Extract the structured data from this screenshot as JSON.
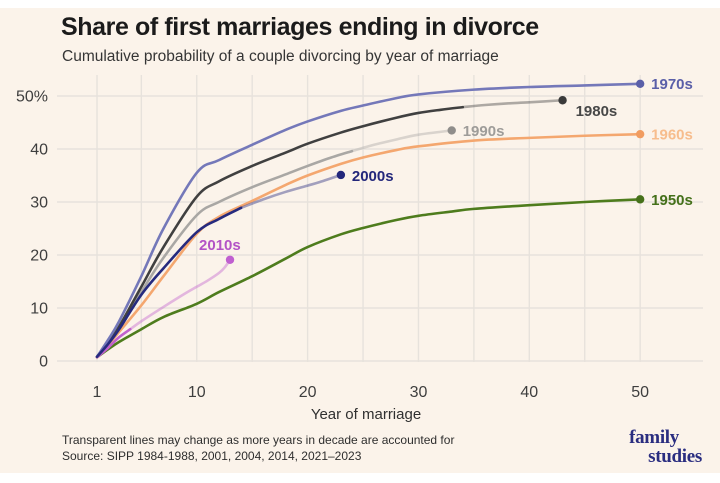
{
  "page": {
    "title": "Share of first marriages ending in divorce",
    "subtitle": "Cumulative probability of a couple divorcing by year of marriage",
    "footnote_line1": "Transparent lines may change as more years in decade are accounted for",
    "footnote_line2": "Source: SIPP 1984-1988, 2001, 2004, 2014, 2021–2023",
    "logo_line1": "family",
    "logo_line2": "studies",
    "colors": {
      "page_background": "#ffffff",
      "card_background": "#fbf3ea",
      "grid": "#e7e2dc",
      "title_text": "#1b1b1b",
      "subtitle_text": "#353535",
      "axis_text": "#3e3e3e",
      "footnote_text": "#2e2e2e",
      "logo_text": "#2a2d80"
    }
  },
  "chart_data": {
    "type": "line",
    "title": "Share of first marriages ending in divorce",
    "subtitle": "Cumulative probability of a couple divorcing by year of marriage",
    "xlabel": "Year of marriage",
    "ylabel": "",
    "xlim": [
      1,
      50
    ],
    "ylim": [
      0,
      53
    ],
    "grid": true,
    "legend_position": "labels-at-line-ends",
    "x_ticks": [
      1,
      10,
      20,
      30,
      40,
      50
    ],
    "x_gridlines": [
      1,
      5,
      10,
      15,
      20,
      25,
      30,
      35,
      40,
      45,
      50
    ],
    "y_gridlines": [
      0,
      10,
      20,
      30,
      40,
      50
    ],
    "y_ticks": [
      {
        "value": 0,
        "label": "0"
      },
      {
        "value": 10,
        "label": "10"
      },
      {
        "value": 20,
        "label": "20"
      },
      {
        "value": 30,
        "label": "30"
      },
      {
        "value": 40,
        "label": "40"
      },
      {
        "value": 50,
        "label": "50%"
      }
    ],
    "series": [
      {
        "name": "1950s",
        "color": "#4e7c1d",
        "label_color": "#44701a",
        "dot_color": "#46711a",
        "fade_from_year": null,
        "label_dx": 11,
        "label_dy": 5.5,
        "points": [
          [
            1,
            0.7
          ],
          [
            2,
            2.2
          ],
          [
            3,
            3.6
          ],
          [
            5,
            6
          ],
          [
            7,
            8.3
          ],
          [
            10,
            10.8
          ],
          [
            12,
            13
          ],
          [
            15,
            16
          ],
          [
            18,
            19.3
          ],
          [
            20,
            21.5
          ],
          [
            23,
            23.9
          ],
          [
            25,
            25.1
          ],
          [
            28,
            26.6
          ],
          [
            30,
            27.4
          ],
          [
            33,
            28.2
          ],
          [
            35,
            28.7
          ],
          [
            40,
            29.4
          ],
          [
            45,
            30
          ],
          [
            50,
            30.5
          ]
        ]
      },
      {
        "name": "1960s",
        "color": "#f4a76f",
        "label_color": "#f7bd8d",
        "dot_color": "#f19c60",
        "fade_from_year": null,
        "label_dx": 11,
        "label_dy": 5.5,
        "points": [
          [
            1,
            0.7
          ],
          [
            2,
            3
          ],
          [
            3,
            5.5
          ],
          [
            5,
            10.5
          ],
          [
            7,
            16
          ],
          [
            10,
            24
          ],
          [
            12,
            27.2
          ],
          [
            15,
            30.2
          ],
          [
            18,
            33.2
          ],
          [
            20,
            35
          ],
          [
            23,
            37.2
          ],
          [
            25,
            38.4
          ],
          [
            28,
            39.8
          ],
          [
            30,
            40.5
          ],
          [
            35,
            41.6
          ],
          [
            40,
            42.1
          ],
          [
            45,
            42.5
          ],
          [
            50,
            42.8
          ]
        ]
      },
      {
        "name": "1990s",
        "color": "#a9a7a4",
        "label_color": "#9e9c99",
        "dot_color": "#8f8d8b",
        "fade_from_year": 24,
        "label_dx": 11,
        "label_dy": 5.5,
        "points": [
          [
            1,
            0.8
          ],
          [
            2,
            3.3
          ],
          [
            3,
            6
          ],
          [
            5,
            13
          ],
          [
            7,
            19.5
          ],
          [
            10,
            27.5
          ],
          [
            12,
            30
          ],
          [
            15,
            32.8
          ],
          [
            18,
            35.2
          ],
          [
            20,
            36.8
          ],
          [
            22,
            38.3
          ],
          [
            24,
            39.6
          ],
          [
            26,
            40.8
          ],
          [
            28,
            41.8
          ],
          [
            30,
            42.7
          ],
          [
            33,
            43.5
          ]
        ]
      },
      {
        "name": "1980s",
        "color": "#404040",
        "label_color": "#474747",
        "dot_color": "#3a3a3a",
        "fade_from_year": 34,
        "label_dx": 13,
        "label_dy": 16,
        "points": [
          [
            1,
            0.8
          ],
          [
            2,
            3.5
          ],
          [
            3,
            6.5
          ],
          [
            5,
            14
          ],
          [
            7,
            21.5
          ],
          [
            10,
            31
          ],
          [
            12,
            33.9
          ],
          [
            15,
            36.8
          ],
          [
            18,
            39.3
          ],
          [
            20,
            41
          ],
          [
            23,
            43.1
          ],
          [
            25,
            44.3
          ],
          [
            28,
            45.9
          ],
          [
            30,
            46.8
          ],
          [
            32,
            47.4
          ],
          [
            34,
            47.9
          ],
          [
            36,
            48.3
          ],
          [
            38,
            48.6
          ],
          [
            40,
            48.8
          ],
          [
            43,
            49.2
          ]
        ]
      },
      {
        "name": "1970s",
        "color": "#7478b9",
        "label_color": "#5a5fa8",
        "dot_color": "#5a5fa8",
        "fade_from_year": null,
        "label_dx": 11,
        "label_dy": 5,
        "points": [
          [
            1,
            0.8
          ],
          [
            2,
            4
          ],
          [
            3,
            7.5
          ],
          [
            5,
            16
          ],
          [
            7,
            25
          ],
          [
            10,
            35.5
          ],
          [
            12,
            37.9
          ],
          [
            15,
            40.8
          ],
          [
            18,
            43.6
          ],
          [
            20,
            45.2
          ],
          [
            23,
            47.2
          ],
          [
            25,
            48.2
          ],
          [
            28,
            49.6
          ],
          [
            30,
            50.3
          ],
          [
            35,
            51.2
          ],
          [
            40,
            51.7
          ],
          [
            45,
            52
          ],
          [
            50,
            52.3
          ]
        ]
      },
      {
        "name": "2010s",
        "color": "#c161ce",
        "label_color": "#b353c6",
        "dot_color": "#c05fd0",
        "fade_from_year": 4,
        "label_dx": -31,
        "label_dy": -10,
        "points": [
          [
            1,
            0.7
          ],
          [
            2,
            2.5
          ],
          [
            3,
            4.5
          ],
          [
            4,
            6
          ],
          [
            5,
            7.5
          ],
          [
            7,
            10.2
          ],
          [
            9,
            12.8
          ],
          [
            10,
            14
          ],
          [
            11,
            15.2
          ],
          [
            12,
            16.6
          ],
          [
            12.5,
            17.6
          ],
          [
            13,
            19.1
          ]
        ]
      },
      {
        "name": "2000s",
        "color": "#262a7e",
        "label_color": "#23277b",
        "dot_color": "#23277b",
        "fade_from_year": 14,
        "label_dx": 11,
        "label_dy": 6,
        "points": [
          [
            1,
            0.8
          ],
          [
            2,
            3.2
          ],
          [
            3,
            6
          ],
          [
            5,
            12.5
          ],
          [
            7,
            17.5
          ],
          [
            10,
            24.3
          ],
          [
            12,
            26.8
          ],
          [
            14,
            28.9
          ],
          [
            16,
            30.5
          ],
          [
            18,
            31.9
          ],
          [
            20,
            33.1
          ],
          [
            21,
            33.7
          ],
          [
            23,
            35.1
          ]
        ]
      }
    ]
  }
}
